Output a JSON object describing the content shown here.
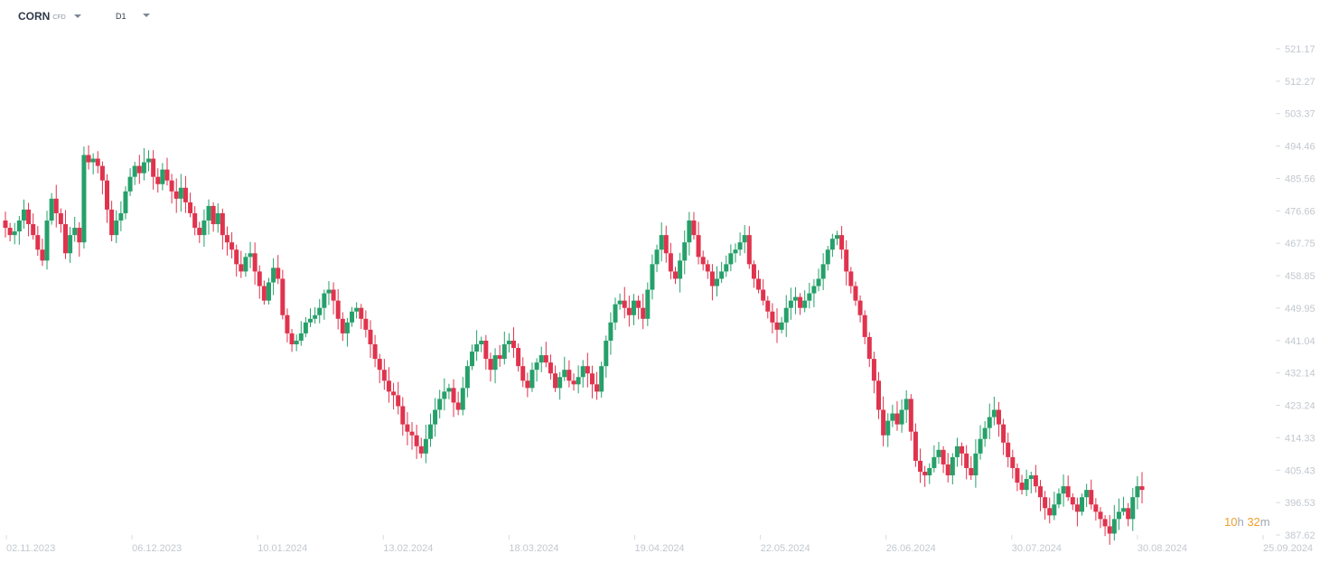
{
  "toolbar": {
    "symbol": "CORN",
    "symbol_type": "CFD",
    "timeframe": "D1"
  },
  "countdown": {
    "hours": "10",
    "hours_unit": "h",
    "minutes": "32",
    "minutes_unit": "m"
  },
  "colors": {
    "up": "#26a06a",
    "down": "#e0334d",
    "axis_text": "#c2c8cf",
    "countdown": "#f0a030"
  },
  "chart_data": {
    "type": "candlestick",
    "title": "",
    "y_ticks": [
      "521.17",
      "512.27",
      "503.37",
      "494.46",
      "485.56",
      "476.66",
      "467.75",
      "458.85",
      "449.95",
      "441.04",
      "432.14",
      "423.24",
      "414.33",
      "405.43",
      "396.53",
      "387.62"
    ],
    "x_ticks": [
      "02.11.2023",
      "06.12.2023",
      "10.01.2024",
      "13.02.2024",
      "18.03.2024",
      "19.04.2024",
      "22.05.2024",
      "26.06.2024",
      "30.07.2024",
      "30.08.2024",
      "25.09.2024"
    ],
    "ylim": [
      387.62,
      521.17
    ],
    "close_path": [
      472,
      470,
      471,
      474,
      477,
      473,
      470,
      466,
      463,
      474,
      480,
      476,
      473,
      465,
      470,
      472,
      468,
      492,
      490,
      491,
      489,
      485,
      477,
      470,
      474,
      476,
      482,
      486,
      489,
      487,
      490,
      491,
      486,
      484,
      488,
      485,
      482,
      480,
      483,
      479,
      476,
      472,
      470,
      474,
      478,
      473,
      476,
      470,
      468,
      466,
      462,
      460,
      464,
      465,
      460,
      456,
      452,
      457,
      461,
      458,
      448,
      443,
      440,
      441,
      443,
      446,
      447,
      448,
      450,
      454,
      455,
      452,
      447,
      443,
      446,
      449,
      450,
      447,
      444,
      440,
      436,
      433,
      430,
      427,
      426,
      423,
      418,
      416,
      415,
      412,
      410,
      414,
      418,
      422,
      425,
      427,
      428,
      424,
      422,
      428,
      434,
      438,
      440,
      441,
      436,
      433,
      437,
      436,
      440,
      441,
      439,
      434,
      430,
      428,
      433,
      435,
      437,
      435,
      432,
      428,
      431,
      433,
      430,
      429,
      431,
      434,
      432,
      429,
      427,
      434,
      441,
      446,
      451,
      452,
      450,
      448,
      452,
      450,
      447,
      455,
      462,
      466,
      470,
      465,
      460,
      458,
      463,
      468,
      474,
      470,
      464,
      462,
      460,
      456,
      458,
      460,
      462,
      465,
      466,
      468,
      470,
      462,
      458,
      455,
      452,
      449,
      446,
      444,
      446,
      450,
      452,
      453,
      450,
      452,
      454,
      456,
      458,
      462,
      466,
      469,
      470,
      466,
      460,
      456,
      452,
      448,
      442,
      436,
      430,
      422,
      415,
      419,
      421,
      418,
      422,
      425,
      416,
      408,
      405,
      404,
      406,
      409,
      411,
      407,
      404,
      409,
      412,
      410,
      406,
      404,
      410,
      414,
      417,
      420,
      422,
      418,
      413,
      409,
      406,
      402,
      400,
      403,
      404,
      401,
      398,
      395,
      393,
      396,
      399,
      401,
      398,
      396,
      394,
      398,
      400,
      396,
      394,
      392,
      390,
      388,
      392,
      394,
      395,
      392,
      398,
      401,
      400
    ]
  }
}
